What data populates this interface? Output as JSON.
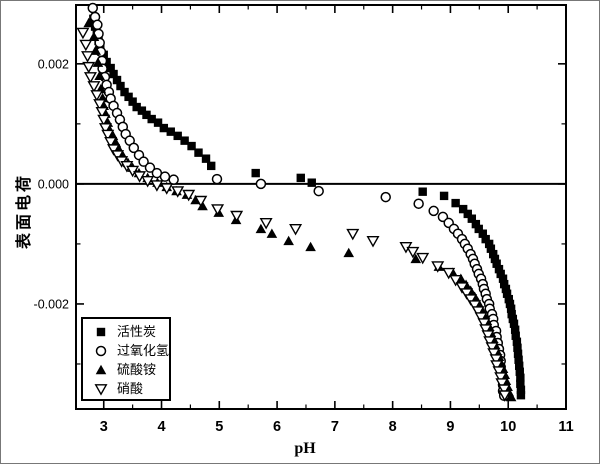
{
  "colors": {
    "foreground": "#000000",
    "background": "#ffffff"
  },
  "chart_data": {
    "type": "scatter",
    "title": "",
    "xlabel": "pH",
    "ylabel": "表面电荷",
    "xlim": [
      2.52,
      11.0
    ],
    "ylim": [
      -0.00375,
      0.00298
    ],
    "grid": false,
    "zero_line": true,
    "legend_position": "bottom-left",
    "x_major_ticks": [
      3,
      4,
      5,
      6,
      7,
      8,
      9,
      10,
      11
    ],
    "x_minor_ticks": [
      3.5,
      4.5,
      5.5,
      6.5,
      7.5,
      8.5,
      9.5,
      10.5
    ],
    "y_major_ticks": [
      0.002,
      0.0,
      -0.002
    ],
    "y_major_tick_labels": [
      "0.002",
      "0.000",
      "-0.002"
    ],
    "y_minor_ticks": [
      0.001,
      -0.001,
      -0.003
    ],
    "series": [
      {
        "name": "活性炭",
        "marker": "square-filled",
        "points": [
          [
            2.82,
            0.00275
          ],
          [
            2.85,
            0.00262
          ],
          [
            2.88,
            0.0025
          ],
          [
            2.91,
            0.00238
          ],
          [
            2.94,
            0.00227
          ],
          [
            3.0,
            0.00215
          ],
          [
            3.05,
            0.00203
          ],
          [
            3.12,
            0.00193
          ],
          [
            3.17,
            0.00183
          ],
          [
            3.23,
            0.00173
          ],
          [
            3.29,
            0.00163
          ],
          [
            3.36,
            0.00153
          ],
          [
            3.43,
            0.00145
          ],
          [
            3.5,
            0.00137
          ],
          [
            3.57,
            0.00128
          ],
          [
            3.66,
            0.00122
          ],
          [
            3.74,
            0.00115
          ],
          [
            3.83,
            0.00108
          ],
          [
            3.94,
            0.00102
          ],
          [
            4.04,
            0.00093
          ],
          [
            4.16,
            0.00087
          ],
          [
            4.28,
            0.0008
          ],
          [
            4.4,
            0.00072
          ],
          [
            4.52,
            0.00063
          ],
          [
            4.64,
            0.00052
          ],
          [
            4.77,
            0.00042
          ],
          [
            4.86,
            0.0003
          ],
          [
            5.63,
            0.00018
          ],
          [
            6.41,
            0.0001
          ],
          [
            6.6,
            2e-05
          ],
          [
            8.52,
            -0.00013
          ],
          [
            8.89,
            -0.0002
          ],
          [
            9.09,
            -0.00032
          ],
          [
            9.22,
            -0.00042
          ],
          [
            9.3,
            -0.0005
          ],
          [
            9.37,
            -0.00058
          ],
          [
            9.44,
            -0.00067
          ],
          [
            9.49,
            -0.00075
          ],
          [
            9.56,
            -0.00083
          ],
          [
            9.61,
            -0.00092
          ],
          [
            9.67,
            -0.001
          ],
          [
            9.7,
            -0.00108
          ],
          [
            9.74,
            -0.00117
          ],
          [
            9.77,
            -0.00125
          ],
          [
            9.8,
            -0.00133
          ],
          [
            9.84,
            -0.00142
          ],
          [
            9.87,
            -0.0015
          ],
          [
            9.91,
            -0.00158
          ],
          [
            9.93,
            -0.00167
          ],
          [
            9.96,
            -0.00175
          ],
          [
            9.98,
            -0.00183
          ],
          [
            10.01,
            -0.00192
          ],
          [
            10.03,
            -0.002
          ],
          [
            10.05,
            -0.00208
          ],
          [
            10.06,
            -0.00217
          ],
          [
            10.08,
            -0.00225
          ],
          [
            10.1,
            -0.00233
          ],
          [
            10.12,
            -0.00243
          ],
          [
            10.13,
            -0.00253
          ],
          [
            10.15,
            -0.00263
          ],
          [
            10.16,
            -0.00273
          ],
          [
            10.17,
            -0.00283
          ],
          [
            10.18,
            -0.00293
          ],
          [
            10.19,
            -0.00303
          ],
          [
            10.2,
            -0.00313
          ],
          [
            10.21,
            -0.00323
          ],
          [
            10.21,
            -0.00333
          ],
          [
            10.22,
            -0.00343
          ],
          [
            10.22,
            -0.00352
          ]
        ]
      },
      {
        "name": "过氧化氢",
        "marker": "circle-open",
        "points": [
          [
            2.81,
            0.00293
          ],
          [
            2.85,
            0.00278
          ],
          [
            2.89,
            0.00265
          ],
          [
            2.91,
            0.0025
          ],
          [
            2.93,
            0.00235
          ],
          [
            2.95,
            0.0022
          ],
          [
            2.97,
            0.00205
          ],
          [
            2.98,
            0.00192
          ],
          [
            3.02,
            0.00178
          ],
          [
            3.05,
            0.00165
          ],
          [
            3.09,
            0.00153
          ],
          [
            3.12,
            0.00142
          ],
          [
            3.17,
            0.0013
          ],
          [
            3.23,
            0.00118
          ],
          [
            3.28,
            0.00107
          ],
          [
            3.33,
            0.00095
          ],
          [
            3.38,
            0.00083
          ],
          [
            3.45,
            0.00072
          ],
          [
            3.52,
            0.0006
          ],
          [
            3.61,
            0.00048
          ],
          [
            3.69,
            0.00037
          ],
          [
            3.8,
            0.00027
          ],
          [
            3.92,
            0.00018
          ],
          [
            4.06,
            0.00012
          ],
          [
            4.21,
            7e-05
          ],
          [
            4.96,
            8e-05
          ],
          [
            5.72,
            0.0
          ],
          [
            6.72,
            -0.00012
          ],
          [
            7.88,
            -0.00022
          ],
          [
            8.45,
            -0.00033
          ],
          [
            8.71,
            -0.00045
          ],
          [
            8.87,
            -0.00055
          ],
          [
            8.97,
            -0.00065
          ],
          [
            9.06,
            -0.00075
          ],
          [
            9.13,
            -0.00083
          ],
          [
            9.2,
            -0.00092
          ],
          [
            9.25,
            -0.001
          ],
          [
            9.3,
            -0.00108
          ],
          [
            9.35,
            -0.00117
          ],
          [
            9.39,
            -0.00125
          ],
          [
            9.42,
            -0.00133
          ],
          [
            9.46,
            -0.00142
          ],
          [
            9.49,
            -0.0015
          ],
          [
            9.53,
            -0.00158
          ],
          [
            9.56,
            -0.00167
          ],
          [
            9.58,
            -0.00175
          ],
          [
            9.61,
            -0.00183
          ],
          [
            9.63,
            -0.00192
          ],
          [
            9.67,
            -0.002
          ],
          [
            9.68,
            -0.00208
          ],
          [
            9.72,
            -0.00217
          ],
          [
            9.74,
            -0.00225
          ],
          [
            9.75,
            -0.00235
          ],
          [
            9.79,
            -0.00245
          ],
          [
            9.8,
            -0.00255
          ],
          [
            9.82,
            -0.00265
          ],
          [
            9.84,
            -0.00275
          ],
          [
            9.86,
            -0.00285
          ],
          [
            9.87,
            -0.00295
          ],
          [
            9.87,
            -0.00305
          ],
          [
            9.89,
            -0.00315
          ],
          [
            9.91,
            -0.00325
          ],
          [
            9.91,
            -0.00335
          ],
          [
            9.91,
            -0.00345
          ],
          [
            9.93,
            -0.00353
          ]
        ]
      },
      {
        "name": "硫酸铵",
        "marker": "triangle-filled",
        "points": [
          [
            2.74,
            0.00268
          ],
          [
            2.83,
            0.00245
          ],
          [
            2.86,
            0.00222
          ],
          [
            2.9,
            0.00202
          ],
          [
            2.93,
            0.0018
          ],
          [
            2.95,
            0.00158
          ],
          [
            2.98,
            0.00143
          ],
          [
            3.0,
            0.0013
          ],
          [
            3.03,
            0.00117
          ],
          [
            3.07,
            0.00102
          ],
          [
            3.09,
            0.00092
          ],
          [
            3.16,
            0.0008
          ],
          [
            3.21,
            0.00068
          ],
          [
            3.26,
            0.00058
          ],
          [
            3.33,
            0.00047
          ],
          [
            3.42,
            0.00035
          ],
          [
            3.5,
            0.00027
          ],
          [
            3.61,
            0.00018
          ],
          [
            3.76,
            0.0001
          ],
          [
            3.93,
            2e-05
          ],
          [
            4.09,
            -5e-05
          ],
          [
            4.26,
            -0.00012
          ],
          [
            4.44,
            -0.00018
          ],
          [
            4.59,
            -0.00027
          ],
          [
            4.71,
            -0.00037
          ],
          [
            4.99,
            -0.00048
          ],
          [
            5.29,
            -0.0006
          ],
          [
            5.72,
            -0.00075
          ],
          [
            5.91,
            -0.00083
          ],
          [
            6.2,
            -0.00095
          ],
          [
            6.58,
            -0.00105
          ],
          [
            7.24,
            -0.00115
          ],
          [
            8.4,
            -0.00125
          ],
          [
            8.8,
            -0.00138
          ],
          [
            9.04,
            -0.00148
          ],
          [
            9.18,
            -0.00158
          ],
          [
            9.27,
            -0.00168
          ],
          [
            9.35,
            -0.00178
          ],
          [
            9.42,
            -0.00188
          ],
          [
            9.48,
            -0.00198
          ],
          [
            9.53,
            -0.00208
          ],
          [
            9.58,
            -0.00218
          ],
          [
            9.63,
            -0.00228
          ],
          [
            9.67,
            -0.00238
          ],
          [
            9.7,
            -0.00248
          ],
          [
            9.74,
            -0.00258
          ],
          [
            9.77,
            -0.00268
          ],
          [
            9.8,
            -0.00278
          ],
          [
            9.84,
            -0.00288
          ],
          [
            9.87,
            -0.00298
          ],
          [
            9.91,
            -0.00308
          ],
          [
            9.94,
            -0.00318
          ],
          [
            9.96,
            -0.00328
          ],
          [
            9.99,
            -0.00338
          ],
          [
            10.01,
            -0.00347
          ],
          [
            10.05,
            -0.00355
          ]
        ]
      },
      {
        "name": "硝酸",
        "marker": "triangle-down-open",
        "points": [
          [
            2.64,
            0.00252
          ],
          [
            2.69,
            0.00232
          ],
          [
            2.72,
            0.00213
          ],
          [
            2.74,
            0.00195
          ],
          [
            2.77,
            0.00178
          ],
          [
            2.83,
            0.00163
          ],
          [
            2.88,
            0.00148
          ],
          [
            2.93,
            0.00133
          ],
          [
            2.97,
            0.0012
          ],
          [
            3.0,
            0.00107
          ],
          [
            3.03,
            0.00093
          ],
          [
            3.07,
            0.00082
          ],
          [
            3.12,
            0.0007
          ],
          [
            3.17,
            0.00058
          ],
          [
            3.24,
            0.00048
          ],
          [
            3.31,
            0.00038
          ],
          [
            3.4,
            0.0003
          ],
          [
            3.5,
            0.00022
          ],
          [
            3.62,
            0.00013
          ],
          [
            3.76,
            5e-05
          ],
          [
            3.92,
            -2e-05
          ],
          [
            4.09,
            -7e-05
          ],
          [
            4.28,
            -0.00012
          ],
          [
            4.47,
            -0.00018
          ],
          [
            4.68,
            -0.00028
          ],
          [
            4.97,
            -0.00042
          ],
          [
            5.3,
            -0.00053
          ],
          [
            5.81,
            -0.00065
          ],
          [
            6.32,
            -0.00075
          ],
          [
            7.31,
            -0.00083
          ],
          [
            7.66,
            -0.00095
          ],
          [
            8.23,
            -0.00105
          ],
          [
            8.35,
            -0.00113
          ],
          [
            8.52,
            -0.00123
          ],
          [
            8.78,
            -0.00137
          ],
          [
            8.97,
            -0.00148
          ],
          [
            9.09,
            -0.0016
          ],
          [
            9.2,
            -0.00172
          ],
          [
            9.28,
            -0.00182
          ],
          [
            9.35,
            -0.00192
          ],
          [
            9.42,
            -0.00202
          ],
          [
            9.48,
            -0.00212
          ],
          [
            9.53,
            -0.00222
          ],
          [
            9.58,
            -0.00232
          ],
          [
            9.61,
            -0.00242
          ],
          [
            9.65,
            -0.00252
          ],
          [
            9.68,
            -0.00262
          ],
          [
            9.72,
            -0.00272
          ],
          [
            9.75,
            -0.00282
          ],
          [
            9.79,
            -0.00292
          ],
          [
            9.8,
            -0.00302
          ],
          [
            9.84,
            -0.00312
          ],
          [
            9.87,
            -0.00322
          ],
          [
            9.89,
            -0.00332
          ],
          [
            9.93,
            -0.00342
          ],
          [
            9.94,
            -0.00352
          ]
        ]
      }
    ]
  }
}
